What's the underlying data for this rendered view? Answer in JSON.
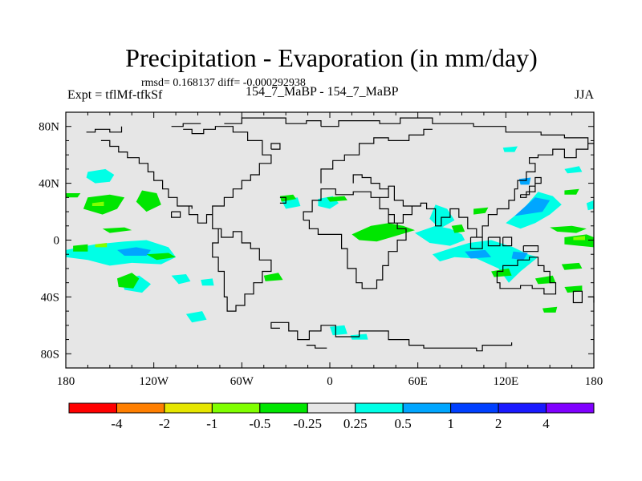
{
  "chart_data": {
    "type": "heatmap",
    "title": "Precipitation - Evaporation (in mm/day)",
    "stats_label": "rmsd= 0.168137 diff= -0.000292938",
    "left_label": "Expt = tflMf-tfkSf",
    "center_label": "154_7_MaBP - 154_7_MaBP",
    "right_label": "JJA",
    "xlim": [
      -180,
      180
    ],
    "ylim": [
      -90,
      90
    ],
    "x_ticks": [
      {
        "value": -180,
        "label": "180"
      },
      {
        "value": -120,
        "label": "120W"
      },
      {
        "value": -60,
        "label": "60W"
      },
      {
        "value": 0,
        "label": "0"
      },
      {
        "value": 60,
        "label": "60E"
      },
      {
        "value": 120,
        "label": "120E"
      },
      {
        "value": 180,
        "label": "180"
      }
    ],
    "y_ticks": [
      {
        "value": 80,
        "label": "80N"
      },
      {
        "value": 40,
        "label": "40N"
      },
      {
        "value": 0,
        "label": "0"
      },
      {
        "value": -40,
        "label": "40S"
      },
      {
        "value": -80,
        "label": "80S"
      }
    ],
    "colorbar": {
      "colors": [
        "#ff0000",
        "#ff7f00",
        "#e6e600",
        "#80ff00",
        "#00e600",
        "#e6e6e6",
        "#00ffe6",
        "#00a6ff",
        "#0040ff",
        "#1a1aff",
        "#8000ff"
      ],
      "labels": [
        "-4",
        "-2",
        "-1",
        "-0.5",
        "-0.25",
        "0.25",
        "0.5",
        "1",
        "2",
        "4"
      ]
    },
    "background_color": "#e6e6e6",
    "contour_regions": [
      {
        "category": "0.25 to 0.5",
        "color": "#00ffe6",
        "points": [
          [
            -180,
            -7
          ],
          [
            -160,
            -3
          ],
          [
            -140,
            -1
          ],
          [
            -125,
            0
          ],
          [
            -110,
            -5
          ],
          [
            -105,
            -12
          ],
          [
            -115,
            -17
          ],
          [
            -135,
            -16
          ],
          [
            -150,
            -18
          ],
          [
            -165,
            -14
          ],
          [
            -180,
            -12
          ]
        ]
      },
      {
        "category": "0.5 to 1",
        "color": "#00a6ff",
        "points": [
          [
            -145,
            -7
          ],
          [
            -132,
            -5
          ],
          [
            -122,
            -7
          ],
          [
            -125,
            -11
          ],
          [
            -140,
            -11
          ]
        ]
      },
      {
        "category": "0.25 to 0.5",
        "color": "#00ffe6",
        "points": [
          [
            -165,
            48
          ],
          [
            -153,
            50
          ],
          [
            -147,
            46
          ],
          [
            -150,
            41
          ],
          [
            -160,
            40
          ],
          [
            -166,
            44
          ]
        ]
      },
      {
        "category": "0.25 to 0.5",
        "color": "#00ffe6",
        "points": [
          [
            -142,
            -28
          ],
          [
            -130,
            -25
          ],
          [
            -122,
            -31
          ],
          [
            -128,
            -37
          ],
          [
            -140,
            -35
          ]
        ]
      },
      {
        "category": "0.25 to 0.5",
        "color": "#00ffe6",
        "points": [
          [
            -108,
            -25
          ],
          [
            -98,
            -24
          ],
          [
            -95,
            -29
          ],
          [
            -103,
            -31
          ]
        ]
      },
      {
        "category": "0.25 to 0.5",
        "color": "#00ffe6",
        "points": [
          [
            -88,
            -28
          ],
          [
            -80,
            -27
          ],
          [
            -79,
            -32
          ],
          [
            -87,
            -32
          ]
        ]
      },
      {
        "category": "0.25 to 0.5",
        "color": "#00ffe6",
        "points": [
          [
            -98,
            -52
          ],
          [
            -87,
            -50
          ],
          [
            -84,
            -56
          ],
          [
            -94,
            -58
          ]
        ]
      },
      {
        "category": "0.25 to 0.5",
        "color": "#00ffe6",
        "points": [
          [
            -33,
            28
          ],
          [
            -22,
            30
          ],
          [
            -20,
            24
          ],
          [
            -30,
            22
          ]
        ]
      },
      {
        "category": "0.25 to 0.5",
        "color": "#00ffe6",
        "points": [
          [
            -8,
            29
          ],
          [
            2,
            31
          ],
          [
            6,
            26
          ],
          [
            0,
            22
          ],
          [
            -8,
            24
          ]
        ]
      },
      {
        "category": "0.25 to 0.5",
        "color": "#00ffe6",
        "points": [
          [
            0,
            -61
          ],
          [
            10,
            -60
          ],
          [
            12,
            -66
          ],
          [
            2,
            -67
          ]
        ]
      },
      {
        "category": "0.25 to 0.5",
        "color": "#00ffe6",
        "points": [
          [
            14,
            -67
          ],
          [
            25,
            -66
          ],
          [
            26,
            -70
          ],
          [
            15,
            -70
          ]
        ]
      },
      {
        "category": "0.25 to 0.5",
        "color": "#00ffe6",
        "points": [
          [
            72,
            25
          ],
          [
            80,
            22
          ],
          [
            85,
            14
          ],
          [
            75,
            8
          ],
          [
            68,
            15
          ]
        ]
      },
      {
        "category": "0.25 to 0.5",
        "color": "#00ffe6",
        "points": [
          [
            58,
            5
          ],
          [
            72,
            10
          ],
          [
            82,
            8
          ],
          [
            90,
            4
          ],
          [
            92,
            0
          ],
          [
            82,
            -4
          ],
          [
            68,
            -2
          ]
        ]
      },
      {
        "category": "0.25 to 0.5",
        "color": "#00ffe6",
        "points": [
          [
            95,
            -2
          ],
          [
            110,
            0
          ],
          [
            125,
            -5
          ],
          [
            135,
            -10
          ],
          [
            142,
            -12
          ],
          [
            130,
            -22
          ],
          [
            122,
            -30
          ],
          [
            115,
            -20
          ],
          [
            100,
            -13
          ],
          [
            85,
            -12
          ],
          [
            75,
            -15
          ],
          [
            70,
            -10
          ],
          [
            82,
            -6
          ]
        ]
      },
      {
        "category": "0.5 to 1",
        "color": "#00a6ff",
        "points": [
          [
            92,
            -8
          ],
          [
            106,
            -7
          ],
          [
            110,
            -12
          ],
          [
            96,
            -13
          ]
        ]
      },
      {
        "category": "0.5 to 1",
        "color": "#00a6ff",
        "points": [
          [
            125,
            -8
          ],
          [
            135,
            -9
          ],
          [
            132,
            -14
          ],
          [
            124,
            -13
          ]
        ]
      },
      {
        "category": "0.25 to 0.5",
        "color": "#00ffe6",
        "points": [
          [
            120,
            12
          ],
          [
            132,
            22
          ],
          [
            142,
            34
          ],
          [
            152,
            31
          ],
          [
            158,
            25
          ],
          [
            150,
            18
          ],
          [
            140,
            12
          ],
          [
            130,
            8
          ]
        ]
      },
      {
        "category": "0.5 to 1",
        "color": "#00a6ff",
        "points": [
          [
            126,
            17
          ],
          [
            140,
            30
          ],
          [
            150,
            28
          ],
          [
            145,
            20
          ]
        ]
      },
      {
        "category": "0.5 to 1",
        "color": "#00a6ff",
        "points": [
          [
            129,
            43
          ],
          [
            137,
            44
          ],
          [
            136,
            39
          ],
          [
            130,
            39
          ]
        ]
      },
      {
        "category": "0.25 to 0.5",
        "color": "#00ffe6",
        "points": [
          [
            118,
            65
          ],
          [
            128,
            66
          ],
          [
            126,
            62
          ],
          [
            119,
            62
          ]
        ]
      },
      {
        "category": "0.25 to 0.5",
        "color": "#00ffe6",
        "points": [
          [
            160,
            50
          ],
          [
            170,
            52
          ],
          [
            172,
            48
          ],
          [
            162,
            47
          ]
        ]
      },
      {
        "category": "0.25 to 0.5",
        "color": "#00ffe6",
        "points": [
          [
            175,
            26
          ],
          [
            180,
            28
          ],
          [
            180,
            22
          ],
          [
            176,
            21
          ]
        ]
      },
      {
        "category": "-0.5 to -0.25",
        "color": "#00e600",
        "points": [
          [
            -165,
            30
          ],
          [
            -150,
            32
          ],
          [
            -140,
            30
          ],
          [
            -145,
            22
          ],
          [
            -155,
            18
          ],
          [
            -168,
            22
          ]
        ]
      },
      {
        "category": "-0.5 to -0.25",
        "color": "#00e600",
        "points": [
          [
            -180,
            33
          ],
          [
            -170,
            33
          ],
          [
            -172,
            30
          ],
          [
            -180,
            30
          ]
        ]
      },
      {
        "category": "-0.5 to -0.25",
        "color": "#00e600",
        "points": [
          [
            -155,
            8
          ],
          [
            -140,
            9
          ],
          [
            -135,
            7
          ],
          [
            -150,
            5
          ]
        ]
      },
      {
        "category": "-0.5 to -0.25",
        "color": "#00e600",
        "points": [
          [
            -128,
            35
          ],
          [
            -118,
            33
          ],
          [
            -115,
            25
          ],
          [
            -125,
            20
          ],
          [
            -132,
            27
          ]
        ]
      },
      {
        "category": "-0.5 to -0.25",
        "color": "#00e600",
        "points": [
          [
            -175,
            -4
          ],
          [
            -165,
            -3
          ],
          [
            -165,
            -8
          ],
          [
            -175,
            -8
          ]
        ]
      },
      {
        "category": "-0.5 to -0.25",
        "color": "#00e600",
        "points": [
          [
            -145,
            -27
          ],
          [
            -135,
            -23
          ],
          [
            -130,
            -27
          ],
          [
            -134,
            -34
          ],
          [
            -144,
            -33
          ]
        ]
      },
      {
        "category": "-0.5 to -0.25",
        "color": "#00e600",
        "points": [
          [
            -125,
            -10
          ],
          [
            -110,
            -9
          ],
          [
            -105,
            -12
          ],
          [
            -118,
            -14
          ]
        ]
      },
      {
        "category": "-0.5 to -0.25",
        "color": "#00e600",
        "points": [
          [
            -34,
            31
          ],
          [
            -25,
            32
          ],
          [
            -23,
            29
          ],
          [
            -33,
            27
          ]
        ]
      },
      {
        "category": "-0.5 to -0.25",
        "color": "#00e600",
        "points": [
          [
            15,
            4
          ],
          [
            28,
            10
          ],
          [
            40,
            12
          ],
          [
            50,
            10
          ],
          [
            58,
            7
          ],
          [
            45,
            3
          ],
          [
            32,
            -1
          ],
          [
            20,
            0
          ]
        ]
      },
      {
        "category": "-0.5 to -0.25",
        "color": "#00e600",
        "points": [
          [
            -2,
            30
          ],
          [
            10,
            31
          ],
          [
            12,
            28
          ],
          [
            0,
            27
          ]
        ]
      },
      {
        "category": "-0.5 to -0.25",
        "color": "#00e600",
        "points": [
          [
            160,
            2
          ],
          [
            175,
            4
          ],
          [
            180,
            2
          ],
          [
            180,
            -5
          ],
          [
            170,
            -4
          ],
          [
            160,
            -3
          ]
        ]
      },
      {
        "category": "-0.5 to -0.25",
        "color": "#00e600",
        "points": [
          [
            150,
            9
          ],
          [
            165,
            10
          ],
          [
            175,
            8
          ],
          [
            168,
            5
          ],
          [
            155,
            6
          ]
        ]
      },
      {
        "category": "-0.5 to -0.25",
        "color": "#00e600",
        "points": [
          [
            83,
            10
          ],
          [
            90,
            11
          ],
          [
            92,
            6
          ],
          [
            85,
            5
          ]
        ]
      },
      {
        "category": "-0.5 to -0.25",
        "color": "#00e600",
        "points": [
          [
            110,
            -22
          ],
          [
            122,
            -20
          ],
          [
            124,
            -25
          ],
          [
            112,
            -26
          ]
        ]
      },
      {
        "category": "-0.5 to -0.25",
        "color": "#00e600",
        "points": [
          [
            158,
            -17
          ],
          [
            170,
            -16
          ],
          [
            172,
            -20
          ],
          [
            160,
            -21
          ]
        ]
      },
      {
        "category": "-0.5 to -0.25",
        "color": "#00e600",
        "points": [
          [
            140,
            -27
          ],
          [
            152,
            -25
          ],
          [
            154,
            -30
          ],
          [
            142,
            -31
          ]
        ]
      },
      {
        "category": "-0.5 to -0.25",
        "color": "#00e600",
        "points": [
          [
            160,
            -33
          ],
          [
            172,
            -32
          ],
          [
            172,
            -36
          ],
          [
            162,
            -37
          ]
        ]
      },
      {
        "category": "-0.5 to -0.25",
        "color": "#00e600",
        "points": [
          [
            98,
            22
          ],
          [
            108,
            23
          ],
          [
            106,
            19
          ],
          [
            98,
            18
          ]
        ]
      },
      {
        "category": "-0.5 to -0.25",
        "color": "#00e600",
        "points": [
          [
            160,
            35
          ],
          [
            170,
            36
          ],
          [
            168,
            32
          ],
          [
            160,
            32
          ]
        ]
      },
      {
        "category": "-0.5 to -0.25",
        "color": "#00e600",
        "points": [
          [
            -45,
            -25
          ],
          [
            -35,
            -23
          ],
          [
            -32,
            -28
          ],
          [
            -44,
            -29
          ]
        ]
      },
      {
        "category": "-0.5 to -0.25",
        "color": "#00e600",
        "points": [
          [
            145,
            -48
          ],
          [
            155,
            -47
          ],
          [
            154,
            -51
          ],
          [
            146,
            -51
          ]
        ]
      },
      {
        "category": "-1 to -0.5",
        "color": "#80ff00",
        "points": [
          [
            -160,
            -3
          ],
          [
            -152,
            -2
          ],
          [
            -152,
            -5
          ],
          [
            -160,
            -5
          ]
        ]
      },
      {
        "category": "-1 to -0.5",
        "color": "#80ff00",
        "points": [
          [
            166,
            2
          ],
          [
            174,
            3
          ],
          [
            174,
            0
          ],
          [
            166,
            0
          ]
        ]
      },
      {
        "category": "-1 to -0.5",
        "color": "#80ff00",
        "points": [
          [
            -162,
            26
          ],
          [
            -154,
            27
          ],
          [
            -154,
            24
          ],
          [
            -162,
            24
          ]
        ]
      }
    ],
    "coastline_color": "#000000"
  }
}
